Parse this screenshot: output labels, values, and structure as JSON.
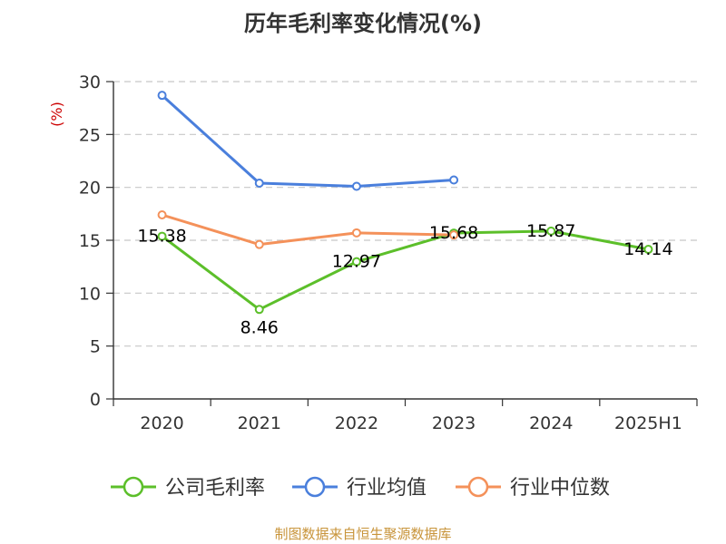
{
  "chart_data": {
    "type": "line",
    "title": "历年毛利率变化情况(%)",
    "ylabel": "(%)",
    "categories": [
      "2020",
      "2021",
      "2022",
      "2023",
      "2024",
      "2025H1"
    ],
    "ylim": [
      0,
      30
    ],
    "yticks": [
      0,
      5,
      10,
      15,
      20,
      25,
      30
    ],
    "grid": true,
    "legend_position": "bottom",
    "series": [
      {
        "name": "公司毛利率",
        "color": "#5cbf2a",
        "values": [
          15.38,
          8.46,
          12.97,
          15.68,
          15.87,
          14.14
        ],
        "labels": [
          "15.38",
          "8.46",
          "12.97",
          "15.68",
          "15.87",
          "14.14"
        ]
      },
      {
        "name": "行业均值",
        "color": "#4a7fdc",
        "values": [
          28.7,
          20.4,
          20.1,
          20.7,
          null,
          null
        ]
      },
      {
        "name": "行业中位数",
        "color": "#f4915a",
        "values": [
          17.4,
          14.6,
          15.7,
          15.5,
          null,
          null
        ]
      }
    ]
  },
  "source": "制图数据来自恒生聚源数据库"
}
